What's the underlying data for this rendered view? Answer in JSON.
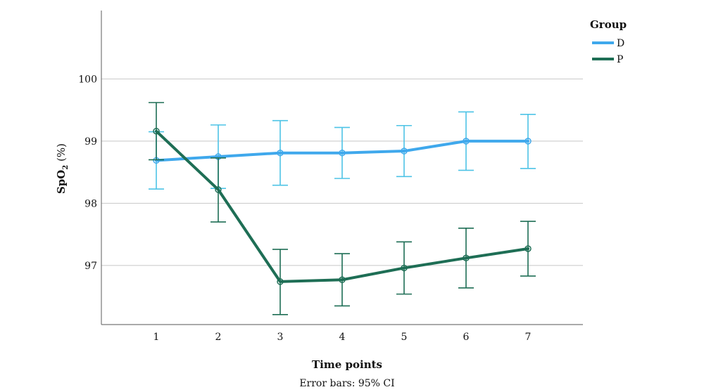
{
  "chart_data": {
    "type": "line",
    "xlabel": "Time points",
    "ylabel": "SpO",
    "ylabel_subscript": "2",
    "ylabel_suffix": " (%)",
    "note": "Error bars: 95% CI",
    "legend_title": "Group",
    "legend_position": "top-right",
    "grid": "horizontal",
    "x": [
      1,
      2,
      3,
      4,
      5,
      6,
      7
    ],
    "y_ticks": [
      97,
      98,
      99,
      100
    ],
    "ylim": [
      96.05,
      101.1
    ],
    "series": [
      {
        "name": "D",
        "color": "#3fa8ec",
        "values": [
          98.69,
          98.75,
          98.81,
          98.81,
          98.84,
          99.0,
          99.0
        ],
        "ci_lower": [
          98.23,
          98.24,
          98.29,
          98.4,
          98.43,
          98.53,
          98.56
        ],
        "ci_upper": [
          99.15,
          99.26,
          99.33,
          99.22,
          99.25,
          99.47,
          99.43
        ]
      },
      {
        "name": "P",
        "color": "#1e6e55",
        "values": [
          99.16,
          98.22,
          96.74,
          96.77,
          96.96,
          97.12,
          97.27
        ],
        "ci_lower": [
          98.7,
          97.7,
          96.21,
          96.35,
          96.54,
          96.64,
          96.83
        ],
        "ci_upper": [
          99.62,
          98.73,
          97.26,
          97.19,
          97.38,
          97.6,
          97.71
        ]
      }
    ]
  }
}
